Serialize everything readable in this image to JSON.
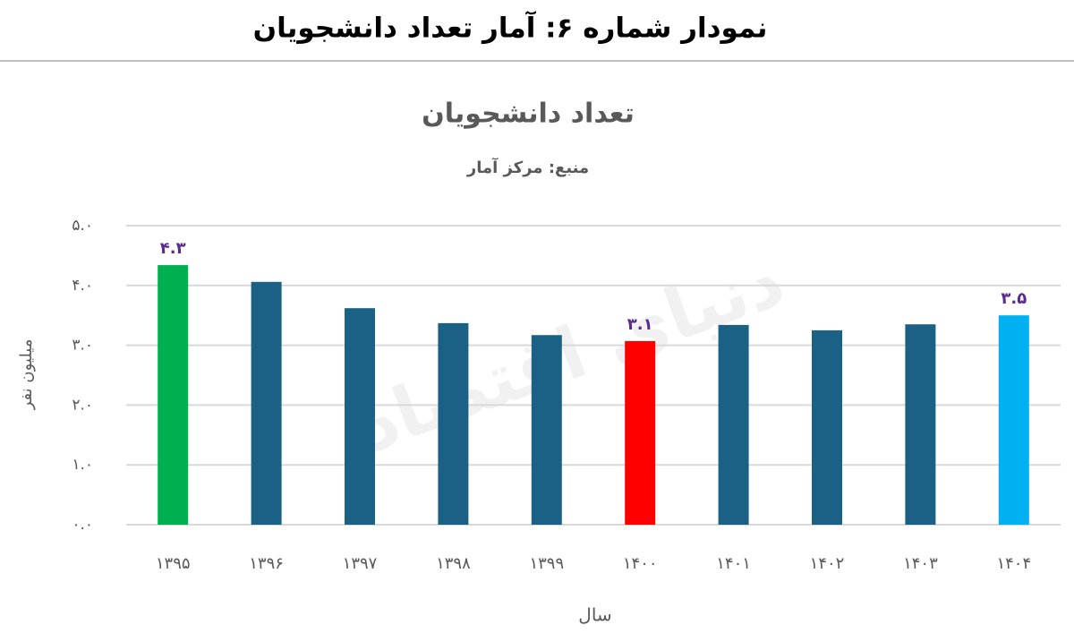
{
  "header": {
    "title": "نمودار شماره ۶: آمار  تعداد دانشجویان"
  },
  "chart_data": {
    "type": "bar",
    "title": "تعداد دانشجویان",
    "subtitle": "منبع: مرکز آمار",
    "watermark": "دنیای اقتصاد",
    "x_label": "سال",
    "y_label": "میلیون نفر",
    "categories": [
      "۱۳۹۵",
      "۱۳۹۶",
      "۱۳۹۷",
      "۱۳۹۸",
      "۱۳۹۹",
      "۱۴۰۰",
      "۱۴۰۱",
      "۱۴۰۲",
      "۱۴۰۳",
      "۱۴۰۴"
    ],
    "values": [
      4.34,
      4.06,
      3.62,
      3.37,
      3.17,
      3.07,
      3.34,
      3.25,
      3.35,
      3.5
    ],
    "value_labels": [
      "۴.۳",
      null,
      null,
      null,
      null,
      "۳.۱",
      null,
      null,
      null,
      "۳.۵"
    ],
    "colors": [
      "#00b050",
      "#1b6185",
      "#1b6185",
      "#1b6185",
      "#1b6185",
      "#ff0000",
      "#1b6185",
      "#1b6185",
      "#1b6185",
      "#00b0f0"
    ],
    "value_label_color": "#5b2c8f",
    "ylim": [
      0,
      5
    ],
    "yticks": [
      {
        "value": 0,
        "label": "۰.۰"
      },
      {
        "value": 1,
        "label": "۱.۰"
      },
      {
        "value": 2,
        "label": "۲.۰"
      },
      {
        "value": 3,
        "label": "۳.۰"
      },
      {
        "value": 4,
        "label": "۴.۰"
      },
      {
        "value": 5,
        "label": "۵.۰"
      }
    ],
    "grid": true
  }
}
